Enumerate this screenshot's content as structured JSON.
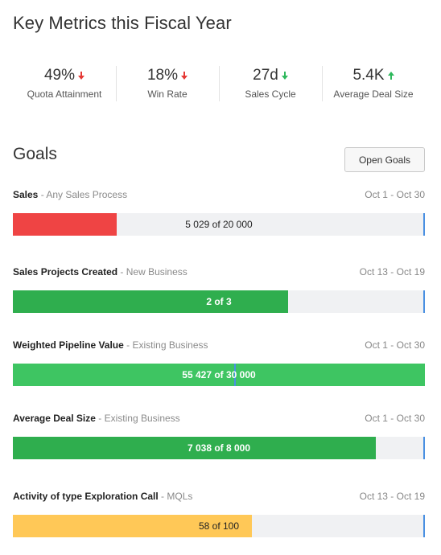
{
  "header": {
    "title": "Key Metrics this Fiscal Year"
  },
  "kpis": [
    {
      "value": "49%",
      "label": "Quota Attainment",
      "trend": "down"
    },
    {
      "value": "18%",
      "label": "Win Rate",
      "trend": "down"
    },
    {
      "value": "27d",
      "label": "Sales Cycle",
      "trend": "down-good"
    },
    {
      "value": "5.4K",
      "label": "Average Deal Size",
      "trend": "up"
    }
  ],
  "colors": {
    "down": "#e53935",
    "good": "#2eb85c",
    "red": "#ef4444",
    "green": "#2fae4e",
    "lightgreen": "#3ec562",
    "yellow": "#ffc857",
    "marker": "#4a90e2"
  },
  "goals": {
    "title": "Goals",
    "open_label": "Open Goals",
    "items": [
      {
        "name": "Sales",
        "sub": "- Any Sales Process",
        "date": "Oct 1 - Oct 30",
        "progress": "5 029 of 20 000",
        "fraction": 0.2515,
        "color": "red",
        "bold": false,
        "marker": 1.0
      },
      {
        "name": "Sales Projects Created",
        "sub": "- New Business",
        "date": "Oct 13 - Oct 19",
        "progress": "2 of 3",
        "fraction": 0.667,
        "color": "green",
        "bold": true,
        "marker": 1.0
      },
      {
        "name": "Weighted Pipeline Value",
        "sub": "- Existing Business",
        "date": "Oct 1 - Oct 30",
        "progress": "55 427 of 30 000",
        "fraction": 1.0,
        "color": "lightgreen",
        "bold": true,
        "marker": 0.541
      },
      {
        "name": "Average Deal Size",
        "sub": "- Existing Business",
        "date": "Oct 1 - Oct 30",
        "progress": "7 038 of 8 000",
        "fraction": 0.88,
        "color": "green",
        "bold": true,
        "marker": 1.0
      },
      {
        "name": "Activity of type Exploration Call",
        "sub": "- MQLs",
        "date": "Oct 13 - Oct 19",
        "progress": "58 of 100",
        "fraction": 0.58,
        "color": "yellow",
        "bold": false,
        "marker": 1.0
      }
    ]
  }
}
